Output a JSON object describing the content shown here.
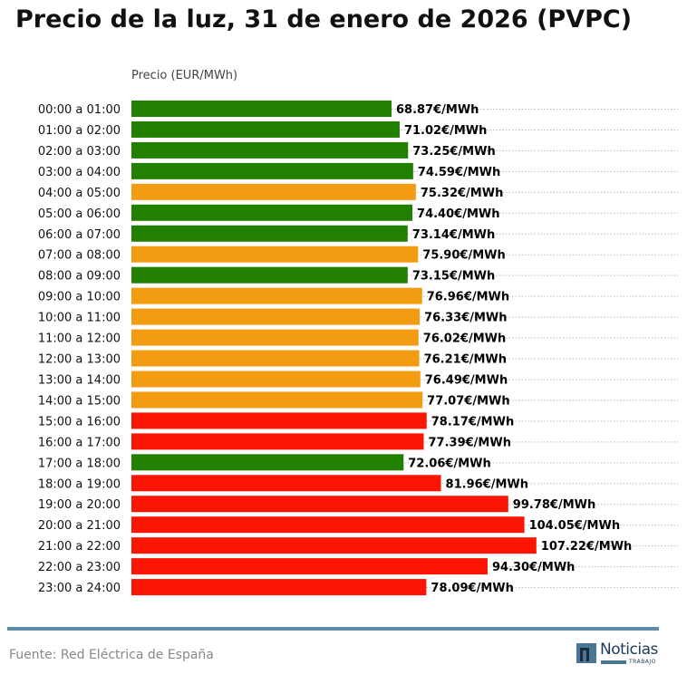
{
  "title": "Precio de la luz, 31 de enero de 2026 (PVPC)",
  "source": "Fuente: Red Eléctrica de España",
  "logo": {
    "text": "Noticias",
    "subtext": "TRABAJO"
  },
  "colors": {
    "low": "#218000",
    "mid": "#f39c12",
    "high": "#fa1505",
    "rule": "#5b8ea6"
  },
  "chart_data": {
    "type": "bar",
    "orientation": "horizontal",
    "xlabel": "Precio (EUR/MWh)",
    "xlim": [
      0,
      144.7
    ],
    "grid": "dotted horizontal",
    "value_suffix": "€/MWh",
    "categories": [
      "00:00 a 01:00",
      "01:00 a 02:00",
      "02:00 a 03:00",
      "03:00 a 04:00",
      "04:00 a 05:00",
      "05:00 a 06:00",
      "06:00 a 07:00",
      "07:00 a 08:00",
      "08:00 a 09:00",
      "09:00 a 10:00",
      "10:00 a 11:00",
      "11:00 a 12:00",
      "12:00 a 13:00",
      "13:00 a 14:00",
      "14:00 a 15:00",
      "15:00 a 16:00",
      "16:00 a 17:00",
      "17:00 a 18:00",
      "18:00 a 19:00",
      "19:00 a 20:00",
      "20:00 a 21:00",
      "21:00 a 22:00",
      "22:00 a 23:00",
      "23:00 a 24:00"
    ],
    "values": [
      68.87,
      71.02,
      73.25,
      74.59,
      75.32,
      74.4,
      73.14,
      75.9,
      73.15,
      76.96,
      76.33,
      76.02,
      76.21,
      76.49,
      77.07,
      78.17,
      77.39,
      72.06,
      81.96,
      99.78,
      104.05,
      107.22,
      94.3,
      78.09
    ],
    "labels": [
      "68.87€/MWh",
      "71.02€/MWh",
      "73.25€/MWh",
      "74.59€/MWh",
      "75.32€/MWh",
      "74.40€/MWh",
      "73.14€/MWh",
      "75.90€/MWh",
      "73.15€/MWh",
      "76.96€/MWh",
      "76.33€/MWh",
      "76.02€/MWh",
      "76.21€/MWh",
      "76.49€/MWh",
      "77.07€/MWh",
      "78.17€/MWh",
      "77.39€/MWh",
      "72.06€/MWh",
      "81.96€/MWh",
      "99.78€/MWh",
      "104.05€/MWh",
      "107.22€/MWh",
      "94.30€/MWh",
      "78.09€/MWh"
    ],
    "bar_levels": [
      "low",
      "low",
      "low",
      "low",
      "mid",
      "low",
      "low",
      "mid",
      "low",
      "mid",
      "mid",
      "mid",
      "mid",
      "mid",
      "mid",
      "high",
      "high",
      "low",
      "high",
      "high",
      "high",
      "high",
      "high",
      "high"
    ]
  }
}
